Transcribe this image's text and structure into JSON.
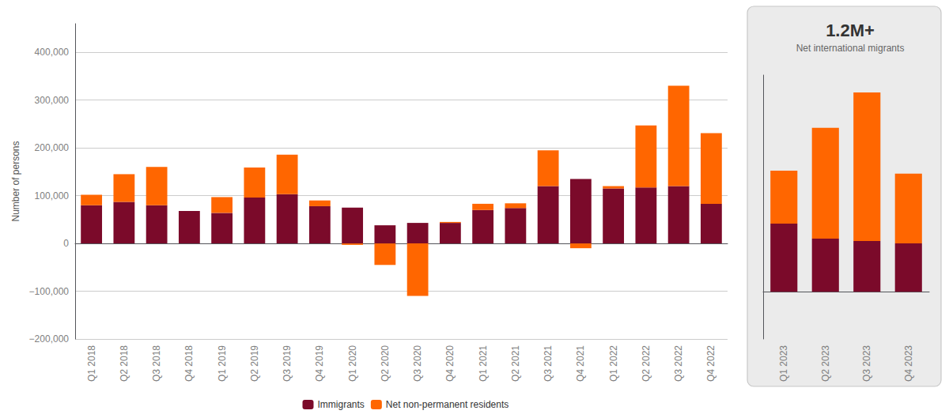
{
  "chart_data": [
    {
      "type": "bar",
      "categories": [
        "Q1 2018",
        "Q2 2018",
        "Q3 2018",
        "Q4 2018",
        "Q1 2019",
        "Q2 2019",
        "Q3 2019",
        "Q4 2019",
        "Q1 2020",
        "Q2 2020",
        "Q3 2020",
        "Q4 2020",
        "Q1 2021",
        "Q2 2021",
        "Q3 2021",
        "Q4 2021",
        "Q1 2022",
        "Q2 2022",
        "Q3 2022",
        "Q4 2022"
      ],
      "series": [
        {
          "name": "Immigrants",
          "color": "#7B0A2A",
          "values": [
            80000,
            87000,
            80000,
            68000,
            64000,
            96000,
            103000,
            78000,
            75000,
            38000,
            43000,
            43000,
            70000,
            74000,
            120000,
            135000,
            115000,
            117000,
            120000,
            83000
          ]
        },
        {
          "name": "Net non-permanent residents",
          "color": "#FF6600",
          "values": [
            22000,
            58000,
            80000,
            0,
            33000,
            63000,
            83000,
            12000,
            -3000,
            -45000,
            -110000,
            2000,
            13000,
            10000,
            75000,
            -10000,
            5000,
            130000,
            210000,
            148000
          ]
        }
      ],
      "ylabel": "Number of persons",
      "ylim": [
        -200000,
        460000
      ],
      "yticks": [
        {
          "value": -200000,
          "label": "−200,000"
        },
        {
          "value": -100000,
          "label": "−100,000"
        },
        0,
        {
          "value": 100000,
          "label": "100,000"
        },
        {
          "value": 200000,
          "label": "200,000"
        },
        {
          "value": 300000,
          "label": "300,000"
        },
        {
          "value": 400000,
          "label": "400,000"
        }
      ],
      "stacked": true,
      "grid": true,
      "legend": "bottom"
    },
    {
      "type": "bar",
      "title": "1.2M+",
      "subtitle": "Net international migrants",
      "categories": [
        "Q1 2023",
        "Q2 2023",
        "Q3 2023",
        "Q4 2023"
      ],
      "series": [
        {
          "name": "Immigrants",
          "color": "#7B0A2A",
          "values": [
            145000,
            113000,
            108000,
            103000
          ]
        },
        {
          "name": "Net non-permanent residents",
          "color": "#FF6600",
          "values": [
            112000,
            235000,
            315000,
            148000
          ]
        }
      ],
      "ylim": [
        -100000,
        460000
      ],
      "stacked": true,
      "grid": false,
      "tick_labels": "x"
    }
  ]
}
